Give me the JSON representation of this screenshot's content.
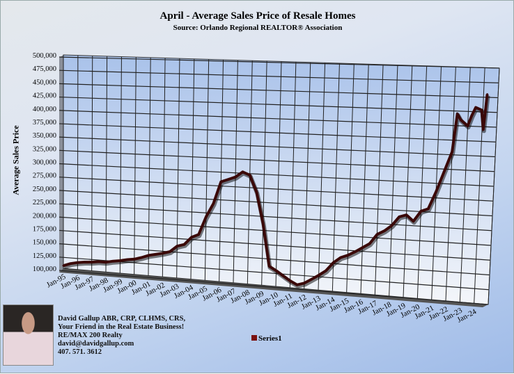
{
  "chart_data": {
    "type": "line",
    "title": "April - Average Sales Price of Resale Homes",
    "subtitle": "Source: Orlando Regional REALTOR® Association",
    "xlabel": "",
    "ylabel": "Average Sales Price",
    "ylim": [
      100000,
      500000
    ],
    "ytick_step": 25000,
    "yticks": [
      "100,000",
      "125,000",
      "150,000",
      "175,000",
      "200,000",
      "225,000",
      "250,000",
      "275,000",
      "300,000",
      "325,000",
      "350,000",
      "375,000",
      "400,000",
      "425,000",
      "450,000",
      "475,000",
      "500,000"
    ],
    "xticks": [
      "Jan-95",
      "Jan-96",
      "Jan-97",
      "Jan-98",
      "Jan-99",
      "Jan-00",
      "Jan-01",
      "Jan-02",
      "Jan-03",
      "Jan-04",
      "Jan-05",
      "Jan-06",
      "Jan-07",
      "Jan-08",
      "Jan-09",
      "Jan-10",
      "Jan-11",
      "Jan-12",
      "Jan-13",
      "Jan-14",
      "Jan-15",
      "Jan-16",
      "Jan-17",
      "Jan-18",
      "Jan-19",
      "Jan-20",
      "Jan-21",
      "Jan-22",
      "Jan-23",
      "Jan-24"
    ],
    "grid": true,
    "view": "3d-perspective",
    "legend": "bottom-center",
    "series": [
      {
        "name": "Series1",
        "color": "#3a0808",
        "x": [
          "1995-01",
          "1995-07",
          "1996-01",
          "1996-07",
          "1997-01",
          "1997-07",
          "1998-01",
          "1998-07",
          "1999-01",
          "1999-07",
          "2000-01",
          "2000-07",
          "2001-01",
          "2001-07",
          "2002-01",
          "2002-07",
          "2003-01",
          "2003-07",
          "2004-01",
          "2004-07",
          "2005-01",
          "2005-07",
          "2006-01",
          "2006-07",
          "2007-01",
          "2007-07",
          "2008-01",
          "2008-07",
          "2009-01",
          "2009-07",
          "2010-01",
          "2010-07",
          "2011-01",
          "2011-07",
          "2012-01",
          "2012-07",
          "2013-01",
          "2013-07",
          "2014-01",
          "2014-07",
          "2015-01",
          "2015-07",
          "2016-01",
          "2016-07",
          "2017-01",
          "2017-07",
          "2018-01",
          "2018-07",
          "2019-01",
          "2019-07",
          "2020-01",
          "2020-07",
          "2021-01",
          "2021-07",
          "2022-01",
          "2022-04",
          "2022-07",
          "2023-01",
          "2023-04",
          "2023-07",
          "2023-12",
          "2024-02",
          "2024-04"
        ],
        "values": [
          105000,
          110000,
          113000,
          115000,
          116000,
          118000,
          118000,
          121000,
          123000,
          126000,
          128000,
          132000,
          137000,
          140000,
          143000,
          147000,
          158000,
          162000,
          176000,
          182000,
          215000,
          240000,
          280000,
          285000,
          290000,
          300000,
          295000,
          265000,
          210000,
          135000,
          128000,
          120000,
          112000,
          106000,
          110000,
          118000,
          126000,
          135000,
          150000,
          160000,
          165000,
          172000,
          180000,
          188000,
          205000,
          212000,
          222000,
          238000,
          242000,
          232000,
          250000,
          255000,
          285000,
          320000,
          355000,
          420000,
          410000,
          400000,
          418000,
          432000,
          428000,
          395000,
          455000
        ]
      }
    ]
  },
  "contact": {
    "line1": "David Gallup  ABR, CRP, CLHMS, CRS,",
    "line2": "Your Friend in the Real Estate Business!",
    "line3": "RE/MAX 200 Realty",
    "line4": "david@davidgallup.com",
    "line5": "407. 571. 3612"
  }
}
